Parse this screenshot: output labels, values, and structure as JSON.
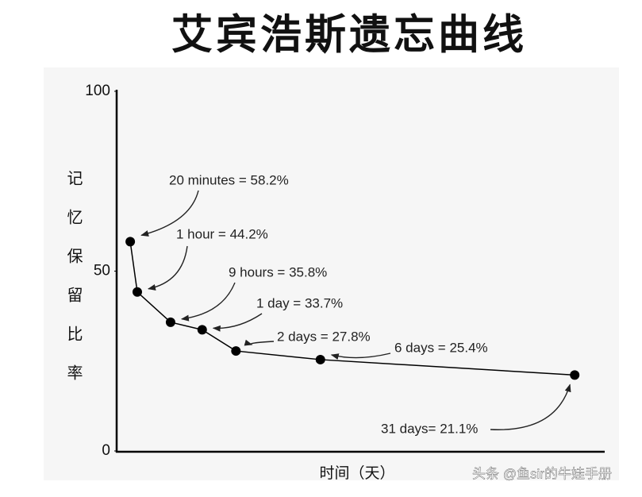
{
  "chart_data": {
    "type": "line",
    "title": "艾宾浩斯遗忘曲线",
    "ylabel": "记忆保留比率",
    "xlabel": "时间（天）",
    "x": [
      0.0139,
      0.0417,
      0.375,
      1,
      2,
      6,
      31
    ],
    "values": [
      58.2,
      44.2,
      35.8,
      33.7,
      27.8,
      25.4,
      21.1
    ],
    "value_labels": [
      "20 minutes = 58.2%",
      "1 hour = 44.2%",
      "9 hours = 35.8%",
      "1 day = 33.7%",
      "2 days = 27.8%",
      "6 days = 25.4%",
      "31 days= 21.1%"
    ],
    "color": "#000000",
    "xscale": "sqrt",
    "xlim": [
      0,
      35
    ],
    "ylim": [
      0,
      100
    ],
    "yticks": [
      0,
      50,
      100
    ],
    "grid": false,
    "watermark": "头条 @鱼sir的牛娃手册"
  }
}
